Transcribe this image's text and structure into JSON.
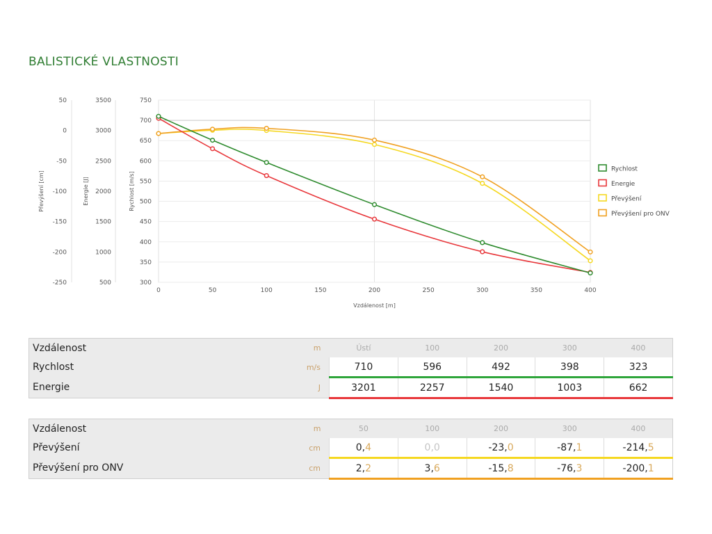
{
  "section_title": "BALISTICKÉ VLASTNOSTI",
  "chart_data": {
    "type": "line",
    "xlabel": "Vzdálenost [m]",
    "x_ticks": [
      0,
      50,
      100,
      150,
      200,
      250,
      300,
      350,
      400
    ],
    "xlim": [
      0,
      400
    ],
    "grid": true,
    "legend_position": "right",
    "axes": {
      "drop": {
        "label": "Převýšení [cm]",
        "ticks": [
          50,
          0,
          -50,
          -100,
          -150,
          -200,
          -250
        ],
        "range": [
          -250,
          50
        ]
      },
      "energy": {
        "label": "Energie [J]",
        "ticks": [
          3500,
          3000,
          2500,
          2000,
          1500,
          1000,
          500
        ],
        "range": [
          500,
          3500
        ]
      },
      "velocity": {
        "label": "Rychlost [m/s]",
        "ticks": [
          750,
          700,
          650,
          600,
          550,
          500,
          450,
          400,
          350,
          300
        ],
        "range": [
          300,
          750
        ]
      }
    },
    "series": [
      {
        "name": "Rychlost",
        "axis": "velocity",
        "color": "#2e8b2e",
        "x": [
          0,
          50,
          100,
          200,
          300,
          400
        ],
        "values": [
          710,
          651,
          596,
          492,
          398,
          323
        ]
      },
      {
        "name": "Energie",
        "axis": "energy",
        "color": "#e8363a",
        "x": [
          0,
          50,
          100,
          200,
          300,
          400
        ],
        "values": [
          3201,
          2700,
          2257,
          1540,
          1003,
          662
        ]
      },
      {
        "name": "Převýšení",
        "axis": "drop",
        "color": "#f5d820",
        "x": [
          0,
          50,
          100,
          200,
          300,
          400
        ],
        "values": [
          -5,
          0.4,
          0.0,
          -23.0,
          -87.1,
          -214.5
        ]
      },
      {
        "name": "Převýšení pro ONV",
        "axis": "drop",
        "color": "#f0a020",
        "x": [
          0,
          50,
          100,
          200,
          300,
          400
        ],
        "values": [
          -5,
          2.2,
          3.6,
          -15.8,
          -76.3,
          -200.1
        ]
      }
    ]
  },
  "table1": {
    "header": {
      "label": "Vzdálenost",
      "unit": "m",
      "cols": [
        "Ústí",
        "100",
        "200",
        "300",
        "400"
      ]
    },
    "rows": [
      {
        "label": "Rychlost",
        "unit": "m/s",
        "values": [
          "710",
          "596",
          "492",
          "398",
          "323"
        ]
      },
      {
        "label": "Energie",
        "unit": "J",
        "values": [
          "3201",
          "2257",
          "1540",
          "1003",
          "662"
        ]
      }
    ]
  },
  "table2": {
    "header": {
      "label": "Vzdálenost",
      "unit": "m",
      "cols": [
        "50",
        "100",
        "200",
        "300",
        "400"
      ]
    },
    "rows": [
      {
        "label": "Převýšení",
        "unit": "cm",
        "values": [
          [
            "0,",
            "4"
          ],
          [
            "0,",
            "0"
          ],
          [
            "-23,",
            "0"
          ],
          [
            "-87,",
            "1"
          ],
          [
            "-214,",
            "5"
          ]
        ]
      },
      {
        "label": "Převýšení pro ONV",
        "unit": "cm",
        "values": [
          [
            "2,",
            "2"
          ],
          [
            "3,",
            "6"
          ],
          [
            "-15,",
            "8"
          ],
          [
            "-76,",
            "3"
          ],
          [
            "-200,",
            "1"
          ]
        ]
      }
    ]
  }
}
